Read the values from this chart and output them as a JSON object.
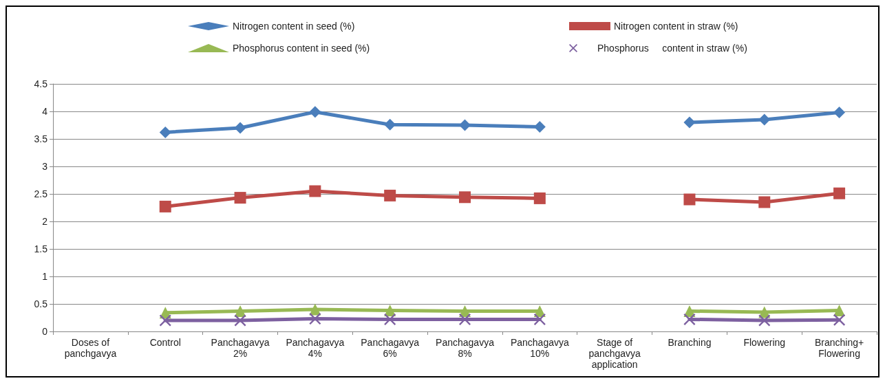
{
  "chart_data": {
    "type": "line",
    "categories": [
      "Doses of\npanchgavya",
      "Control",
      "Panchagavya\n2%",
      "Panchagavya\n4%",
      "Panchagavya\n6%",
      "Panchagavya\n8%",
      "Panchagavya\n10%",
      "Stage of\npanchgavya\napplication",
      "Branching",
      "Flowering",
      "Branching+\nFlowering"
    ],
    "series": [
      {
        "name": "Nitrogen content in seed (%)",
        "color": "#4a7ebb",
        "marker": "diamond",
        "values": [
          null,
          3.62,
          3.7,
          3.99,
          3.76,
          3.75,
          3.72,
          null,
          3.8,
          3.85,
          3.98
        ]
      },
      {
        "name": "Nitrogen content in straw (%)",
        "color": "#be4b48",
        "marker": "square",
        "values": [
          null,
          2.27,
          2.43,
          2.55,
          2.47,
          2.44,
          2.42,
          null,
          2.4,
          2.35,
          2.51
        ]
      },
      {
        "name": "Phosphorus content in seed (%)",
        "color": "#98b954",
        "marker": "triangle",
        "values": [
          null,
          0.34,
          0.37,
          0.4,
          0.38,
          0.37,
          0.37,
          null,
          0.37,
          0.35,
          0.38
        ]
      },
      {
        "name": "Phosphorus     content in straw (%)",
        "color": "#7d60a0",
        "marker": "cross",
        "values": [
          null,
          0.2,
          0.2,
          0.23,
          0.22,
          0.22,
          0.22,
          null,
          0.22,
          0.2,
          0.21
        ]
      }
    ],
    "ylim": [
      0,
      4.5
    ],
    "yticks": [
      0,
      0.5,
      1,
      1.5,
      2,
      2.5,
      3,
      3.5,
      4,
      4.5
    ],
    "grid": "y",
    "legend": "top",
    "line_style": "solid"
  }
}
